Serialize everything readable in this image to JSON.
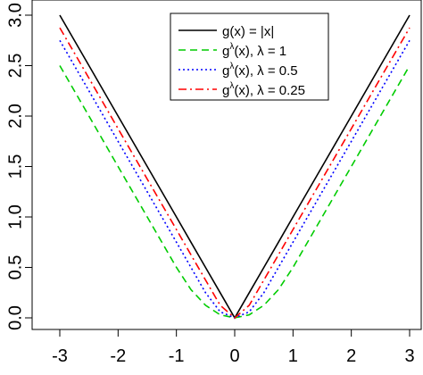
{
  "chart_data": {
    "type": "line",
    "title": "",
    "xlabel": "",
    "ylabel": "",
    "xlim": [
      -3.05,
      3.05
    ],
    "ylim": [
      -0.1,
      3.05
    ],
    "x_ticks": [
      -3,
      -2,
      -1,
      0,
      1,
      2,
      3
    ],
    "x_tick_labels": [
      "-3",
      "-2",
      "-1",
      "0",
      "1",
      "2",
      "3"
    ],
    "y_ticks": [
      0.0,
      0.5,
      1.0,
      1.5,
      2.0,
      2.5,
      3.0
    ],
    "y_tick_labels": [
      "0.0",
      "0.5",
      "1.0",
      "1.5",
      "2.0",
      "2.5",
      "3.0"
    ],
    "grid": false,
    "legend_position": "top-center",
    "x": [
      -3,
      -2.5,
      -2,
      -1.5,
      -1,
      -0.75,
      -0.5,
      -0.25,
      0,
      0.25,
      0.5,
      0.75,
      1,
      1.5,
      2,
      2.5,
      3
    ],
    "series": [
      {
        "name": "g(x) = |x|",
        "color": "#000000",
        "dash": "solid",
        "values": [
          3.0,
          2.5,
          2.0,
          1.5,
          1.0,
          0.75,
          0.5,
          0.25,
          0.0,
          0.25,
          0.5,
          0.75,
          1.0,
          1.5,
          2.0,
          2.5,
          3.0
        ]
      },
      {
        "name_parts": [
          "g",
          "λ",
          "(x), ",
          "λ",
          " = 1"
        ],
        "color": "#00cc00",
        "dash": "dashed",
        "values": [
          2.5,
          2.0,
          1.5,
          1.0,
          0.5,
          0.28,
          0.125,
          0.03,
          0.0,
          0.03,
          0.125,
          0.28,
          0.5,
          1.0,
          1.5,
          2.0,
          2.5
        ]
      },
      {
        "name_parts": [
          "g",
          "λ",
          "(x), ",
          "λ",
          " = 0.5"
        ],
        "color": "#0000ff",
        "dash": "dotted",
        "values": [
          2.75,
          2.25,
          1.75,
          1.25,
          0.75,
          0.5,
          0.25,
          0.06,
          0.0,
          0.06,
          0.25,
          0.5,
          0.75,
          1.25,
          1.75,
          2.25,
          2.75
        ]
      },
      {
        "name_parts": [
          "g",
          "λ",
          "(x), ",
          "λ",
          " = 0.25"
        ],
        "color": "#ff0000",
        "dash": "dashdot",
        "values": [
          2.875,
          2.375,
          1.875,
          1.375,
          0.875,
          0.625,
          0.375,
          0.125,
          0.0,
          0.125,
          0.375,
          0.625,
          0.875,
          1.375,
          1.875,
          2.375,
          2.875
        ]
      }
    ]
  }
}
